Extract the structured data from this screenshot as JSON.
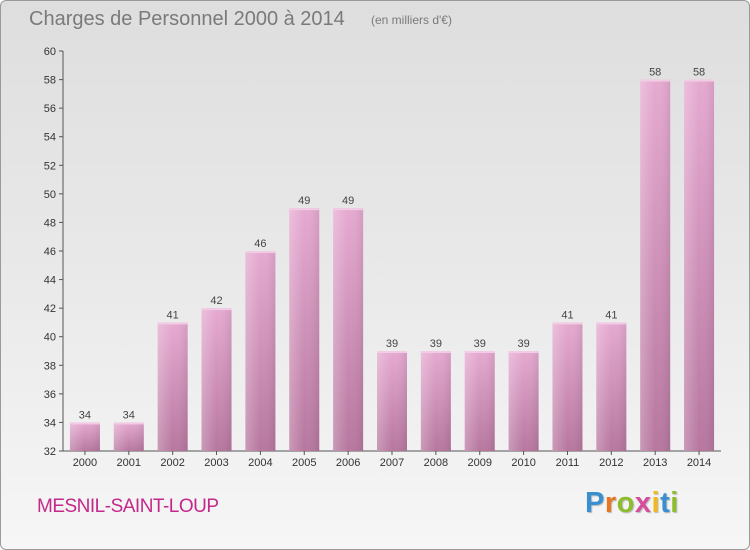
{
  "header": {
    "title": "Charges de Personnel 2000 à 2014",
    "unit": "(en milliers d'€)"
  },
  "footer": {
    "commune": "MESNIL-SAINT-LOUP",
    "logo_letters": [
      "P",
      "r",
      "o",
      "x",
      "i",
      "t",
      "i"
    ]
  },
  "colors": {
    "bar_fill_top": "#e6aad1",
    "bar_fill_bottom": "#b7779f",
    "commune_text": "#c2298a"
  },
  "chart_data": {
    "type": "bar",
    "title": "Charges de Personnel 2000 à 2014",
    "subtitle": "(en milliers d'€)",
    "xlabel": "",
    "ylabel": "",
    "categories": [
      "2000",
      "2001",
      "2002",
      "2003",
      "2004",
      "2005",
      "2006",
      "2007",
      "2008",
      "2009",
      "2010",
      "2011",
      "2012",
      "2013",
      "2014"
    ],
    "values": [
      34,
      34,
      41,
      42,
      46,
      49,
      49,
      39,
      39,
      39,
      39,
      41,
      41,
      58,
      58
    ],
    "ylim": [
      32,
      60
    ],
    "yticks": [
      32,
      34,
      36,
      38,
      40,
      42,
      44,
      46,
      48,
      50,
      52,
      54,
      56,
      58,
      60
    ],
    "data_labels": true,
    "grid": false,
    "legend": "none"
  }
}
